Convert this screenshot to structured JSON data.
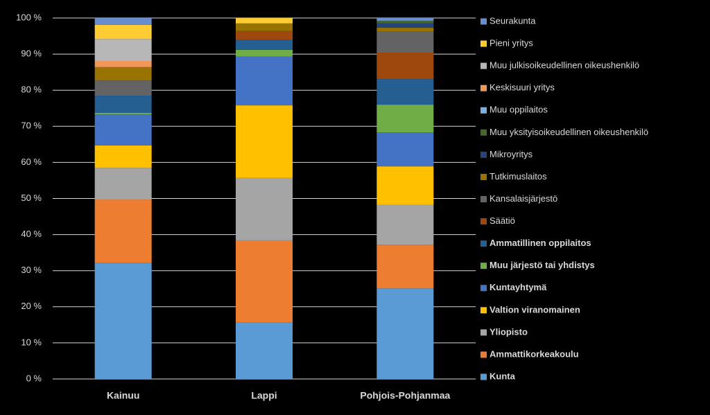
{
  "chart_data": {
    "type": "stacked_bar",
    "categories": [
      "Kainuu",
      "Lappi",
      "Pohjois-Pohjanmaa"
    ],
    "ylim": [
      0,
      100
    ],
    "yticks": [
      {
        "value": 0,
        "label": "0 %"
      },
      {
        "value": 10,
        "label": "10 %"
      },
      {
        "value": 20,
        "label": "20 %"
      },
      {
        "value": 30,
        "label": "30 %"
      },
      {
        "value": 40,
        "label": "40 %"
      },
      {
        "value": 50,
        "label": "50 %"
      },
      {
        "value": 60,
        "label": "60 %"
      },
      {
        "value": 70,
        "label": "70 %"
      },
      {
        "value": 80,
        "label": "80 %"
      },
      {
        "value": 90,
        "label": "90 %"
      },
      {
        "value": 100,
        "label": "100 %"
      }
    ],
    "grid": true,
    "legend": "right",
    "series": [
      {
        "name": "Kunta",
        "color": "#5b9bd5",
        "bold": true,
        "values": [
          32.2,
          15.7,
          25.1
        ]
      },
      {
        "name": "Ammattikorkeakoulu",
        "color": "#ed7d31",
        "bold": true,
        "values": [
          17.5,
          22.7,
          12.1
        ]
      },
      {
        "name": "Yliopisto",
        "color": "#a5a5a5",
        "bold": true,
        "values": [
          8.8,
          17.3,
          11.0
        ]
      },
      {
        "name": "Valtion viranomainen",
        "color": "#ffc000",
        "bold": true,
        "values": [
          6.2,
          20.1,
          10.7
        ]
      },
      {
        "name": "Kuntayhtymä",
        "color": "#4472c4",
        "bold": true,
        "values": [
          8.6,
          13.5,
          9.4
        ]
      },
      {
        "name": "Muu järjestö tai yhdistys",
        "color": "#70ad47",
        "bold": true,
        "values": [
          0.4,
          1.9,
          7.7
        ]
      },
      {
        "name": "Ammatillinen oppilaitos",
        "color": "#255e91",
        "bold": true,
        "values": [
          4.8,
          2.7,
          7.1
        ]
      },
      {
        "name": "Säätiö",
        "color": "#9e480e",
        "bold": false,
        "values": [
          0,
          2.5,
          7.3
        ]
      },
      {
        "name": "Kansalaisjärjestö",
        "color": "#636363",
        "bold": false,
        "values": [
          4.2,
          0,
          5.8
        ]
      },
      {
        "name": "Tutkimuslaitos",
        "color": "#997300",
        "bold": false,
        "values": [
          3.7,
          2.1,
          1.1
        ]
      },
      {
        "name": "Mikroyritys",
        "color": "#264478",
        "bold": false,
        "values": [
          0,
          0,
          1.2
        ]
      },
      {
        "name": "Muu yksityisoikeudellinen oikeushenkilö",
        "color": "#43682b",
        "bold": false,
        "values": [
          0,
          0,
          0.7
        ]
      },
      {
        "name": "Muu oppilaitos",
        "color": "#7cafdd",
        "bold": false,
        "values": [
          0,
          0,
          0
        ]
      },
      {
        "name": "Keskisuuri yritys",
        "color": "#f1975a",
        "bold": false,
        "values": [
          1.7,
          0,
          0
        ]
      },
      {
        "name": "Muu julkisoikeudellinen oikeushenkilö",
        "color": "#b7b7b7",
        "bold": false,
        "values": [
          6.1,
          0,
          0
        ]
      },
      {
        "name": "Pieni yritys",
        "color": "#ffcd33",
        "bold": false,
        "values": [
          3.9,
          1.5,
          0
        ]
      },
      {
        "name": "Seurakunta",
        "color": "#698ed0",
        "bold": false,
        "values": [
          1.9,
          0,
          0.8
        ]
      }
    ]
  }
}
